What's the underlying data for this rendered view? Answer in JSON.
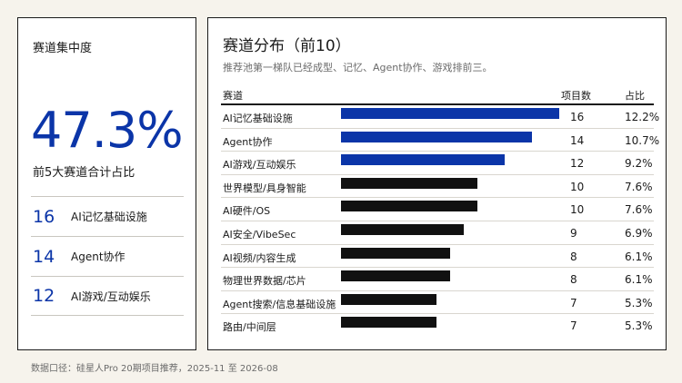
{
  "left_panel": {
    "title": "赛道集中度",
    "big_value": "47.3%",
    "subtitle": "前5大赛道合计占比",
    "top_items": [
      {
        "count": "16",
        "name": "AI记忆基础设施"
      },
      {
        "count": "14",
        "name": "Agent协作"
      },
      {
        "count": "12",
        "name": "AI游戏/互动娱乐"
      }
    ]
  },
  "right_panel": {
    "title": "赛道分布（前10）",
    "subtitle": "推荐池第一梯队已经成型、记忆、Agent协作、游戏排前三。",
    "col_name": "赛道",
    "col_count": "项目数",
    "col_share": "占比"
  },
  "chart_data": {
    "type": "bar",
    "orientation": "horizontal",
    "categories": [
      "AI记忆基础设施",
      "Agent协作",
      "AI游戏/互动娱乐",
      "世界模型/具身智能",
      "AI硬件/OS",
      "AI安全/VibeSec",
      "AI视频/内容生成",
      "物理世界数据/芯片",
      "Agent搜索/信息基础设施",
      "路由/中间层"
    ],
    "values": [
      16,
      14,
      12,
      10,
      10,
      9,
      8,
      8,
      7,
      7
    ],
    "shares": [
      "12.2%",
      "10.7%",
      "9.2%",
      "7.6%",
      "7.6%",
      "6.9%",
      "6.1%",
      "6.1%",
      "5.3%",
      "5.3%"
    ],
    "xlim": [
      0,
      16
    ],
    "highlight_count": 3,
    "colors": {
      "highlight": "#0b35a8",
      "default": "#111111"
    }
  },
  "footnote": "数据口径：硅星人Pro 20期项目推荐，2025-11 至 2026-08"
}
